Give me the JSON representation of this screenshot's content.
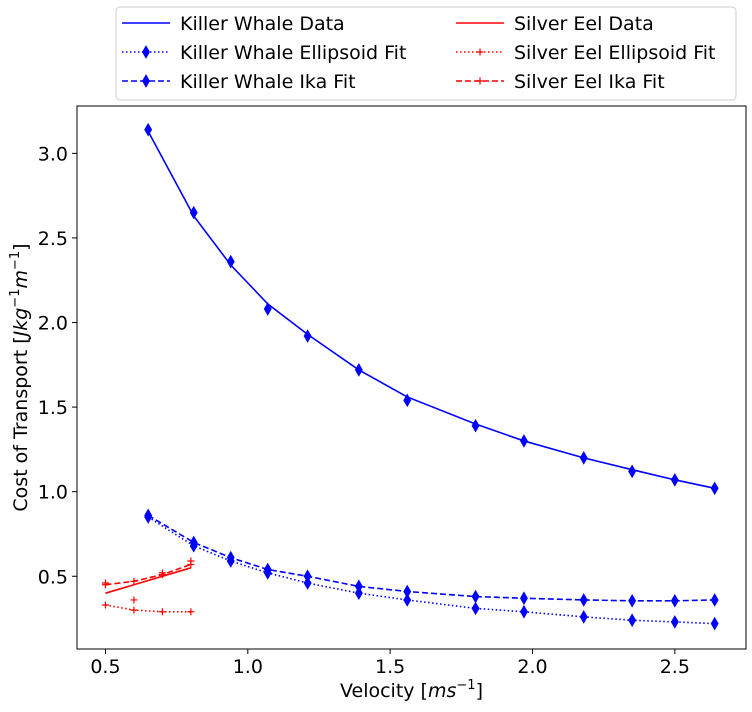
{
  "chart_data": {
    "type": "line",
    "xlabel": "Velocity [",
    "xlabel_math": "ms",
    "xlabel_sup": "−1",
    "xlabel_end": "]",
    "ylabel": "Cost of Transport [",
    "ylabel_math": "Jkg",
    "ylabel_sup1": "−1",
    "ylabel_math2": "m",
    "ylabel_sup2": "−1",
    "ylabel_end": "]",
    "xlim": [
      0.4,
      2.75
    ],
    "ylim": [
      0.07,
      3.28
    ],
    "xticks": [
      0.5,
      1.0,
      1.5,
      2.0,
      2.5
    ],
    "xtick_labels": [
      "0.5",
      "1.0",
      "1.5",
      "2.0",
      "2.5"
    ],
    "yticks": [
      0.5,
      1.0,
      1.5,
      2.0,
      2.5,
      3.0
    ],
    "ytick_labels": [
      "0.5",
      "1.0",
      "1.5",
      "2.0",
      "2.5",
      "3.0"
    ],
    "legend_position": "top-center",
    "series": [
      {
        "name": "Killer Whale Data",
        "color": "#0000ff",
        "linestyle": "solid",
        "marker": "none",
        "x": [
          0.65,
          0.81,
          0.94,
          1.07,
          1.21,
          1.39,
          1.56,
          1.8,
          1.97,
          2.18,
          2.35,
          2.5,
          2.64
        ],
        "y": [
          3.13,
          2.63,
          2.34,
          2.11,
          1.93,
          1.72,
          1.56,
          1.4,
          1.3,
          1.2,
          1.13,
          1.07,
          1.02
        ]
      },
      {
        "name": "Killer Whale Ellipsoid Fit",
        "color": "#0000ff",
        "linestyle": "dotted",
        "marker": "diamond",
        "x": [
          0.65,
          0.81,
          0.94,
          1.07,
          1.21,
          1.39,
          1.56,
          1.8,
          1.97,
          2.18,
          2.35,
          2.5,
          2.64
        ],
        "y": [
          0.85,
          0.68,
          0.59,
          0.52,
          0.46,
          0.4,
          0.36,
          0.31,
          0.29,
          0.26,
          0.24,
          0.23,
          0.22
        ]
      },
      {
        "name": "Killer Whale Ika Fit",
        "color": "#0000ff",
        "linestyle": "dashed",
        "marker": "diamond",
        "x": [
          0.65,
          0.81,
          0.94,
          1.07,
          1.21,
          1.39,
          1.56,
          1.8,
          1.97,
          2.18,
          2.35,
          2.5,
          2.64
        ],
        "y": [
          0.86,
          0.7,
          0.61,
          0.54,
          0.5,
          0.44,
          0.41,
          0.38,
          0.37,
          0.36,
          0.355,
          0.355,
          0.36
        ]
      },
      {
        "name": "Killer Whale Data",
        "color": "#0000ff",
        "linestyle": "none",
        "marker": "diamond",
        "legend": false,
        "x": [
          0.65,
          0.81,
          0.94,
          1.07,
          1.21,
          1.39,
          1.56,
          1.8,
          1.97,
          2.18,
          2.35,
          2.5,
          2.64
        ],
        "y": [
          3.14,
          2.65,
          2.36,
          2.08,
          1.92,
          1.72,
          1.54,
          1.39,
          1.3,
          1.2,
          1.12,
          1.07,
          1.02
        ]
      },
      {
        "name": "Silver Eel Data",
        "color": "#ff0000",
        "linestyle": "solid",
        "marker": "none",
        "x": [
          0.5,
          0.8
        ],
        "y": [
          0.4,
          0.55
        ]
      },
      {
        "name": "Silver Eel Ellipsoid Fit",
        "color": "#ff0000",
        "linestyle": "dotted",
        "marker": "plus",
        "x": [
          0.5,
          0.6,
          0.7,
          0.8
        ],
        "y": [
          0.33,
          0.3,
          0.29,
          0.29
        ]
      },
      {
        "name": "Silver Eel Ika Fit",
        "color": "#ff0000",
        "linestyle": "dashed",
        "marker": "plus",
        "x": [
          0.5,
          0.6,
          0.7,
          0.8
        ],
        "y": [
          0.45,
          0.47,
          0.51,
          0.57
        ]
      },
      {
        "name": "Silver Eel Data",
        "color": "#ff0000",
        "linestyle": "none",
        "marker": "plus",
        "legend": false,
        "x": [
          0.5,
          0.6,
          0.7,
          0.8
        ],
        "y": [
          0.46,
          0.36,
          0.52,
          0.59
        ]
      }
    ]
  }
}
